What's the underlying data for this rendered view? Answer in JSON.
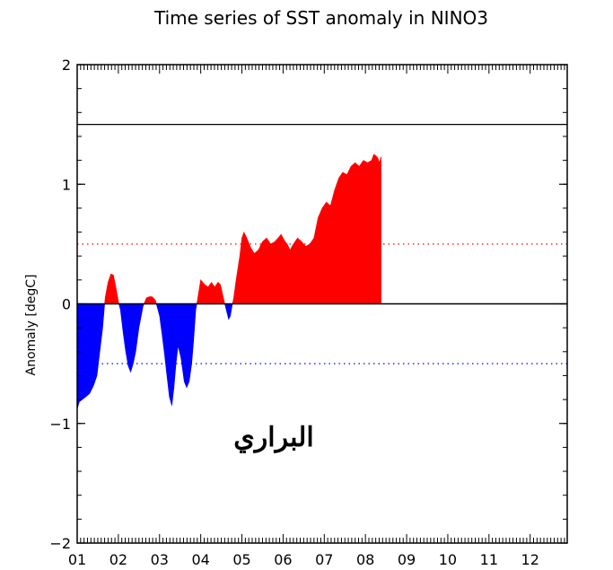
{
  "chart_data": {
    "type": "area",
    "title": "Time series of SST anomaly in NINO3",
    "xlabel": "",
    "ylabel": "Anomaly [degC]",
    "ylim": [
      -2,
      2
    ],
    "yticks": [
      -2,
      -1,
      0,
      1,
      2
    ],
    "ytick_labels": [
      "−2",
      "−1",
      "0",
      "1",
      "2"
    ],
    "xlim": [
      2001.0,
      2012.9
    ],
    "xtick_labels": [
      "01",
      "02",
      "03",
      "04",
      "05",
      "06",
      "07",
      "08",
      "09",
      "10",
      "11",
      "12"
    ],
    "positive_color": "#ff0000",
    "negative_color": "#0000ff",
    "reference_lines": [
      {
        "value": 1.5,
        "style": "solid",
        "color": "#000000"
      },
      {
        "value": 0.5,
        "style": "dotted",
        "color": "#ff0000"
      },
      {
        "value": -0.5,
        "style": "dotted",
        "color": "#0000ff"
      }
    ],
    "annotation": "البراري",
    "x": [
      2001.0,
      2001.05,
      2001.12,
      2001.2,
      2001.3,
      2001.4,
      2001.48,
      2001.55,
      2001.62,
      2001.68,
      2001.75,
      2001.82,
      2001.88,
      2001.95,
      2002.0,
      2002.05,
      2002.12,
      2002.18,
      2002.24,
      2002.3,
      2002.36,
      2002.42,
      2002.5,
      2002.6,
      2002.68,
      2002.75,
      2002.82,
      2002.9,
      2003.0,
      2003.06,
      2003.12,
      2003.18,
      2003.24,
      2003.3,
      2003.35,
      2003.4,
      2003.45,
      2003.52,
      2003.6,
      2003.66,
      2003.72,
      2003.78,
      2003.83,
      2003.88,
      2003.93,
      2004.0,
      2004.05,
      2004.1,
      2004.18,
      2004.26,
      2004.34,
      2004.42,
      2004.48,
      2004.55,
      2004.62,
      2004.68,
      2004.72,
      2004.76,
      2004.8,
      2004.86,
      2004.95,
      2005.0,
      2005.05,
      2005.12,
      2005.2,
      2005.3,
      2005.4,
      2005.5,
      2005.6,
      2005.7,
      2005.8,
      2005.88,
      2005.95,
      2006.0,
      2006.05,
      2006.1,
      2006.17,
      2006.25,
      2006.35,
      2006.45,
      2006.55,
      2006.65,
      2006.75,
      2006.85,
      2006.95,
      2007.05,
      2007.15,
      2007.25,
      2007.35,
      2007.45,
      2007.55,
      2007.65,
      2007.75,
      2007.85,
      2007.95,
      2008.05,
      2008.15,
      2008.2,
      2008.25,
      2008.3,
      2008.34,
      2008.37,
      2008.38
    ],
    "values": [
      -0.88,
      -0.82,
      -0.8,
      -0.78,
      -0.75,
      -0.68,
      -0.6,
      -0.4,
      -0.2,
      0.05,
      0.18,
      0.25,
      0.24,
      0.12,
      0.02,
      -0.05,
      -0.25,
      -0.4,
      -0.52,
      -0.57,
      -0.5,
      -0.4,
      -0.2,
      -0.02,
      0.05,
      0.06,
      0.06,
      0.03,
      -0.1,
      -0.25,
      -0.42,
      -0.6,
      -0.78,
      -0.85,
      -0.7,
      -0.5,
      -0.35,
      -0.45,
      -0.65,
      -0.7,
      -0.65,
      -0.5,
      -0.3,
      -0.05,
      0.05,
      0.2,
      0.18,
      0.16,
      0.14,
      0.18,
      0.14,
      0.18,
      0.16,
      0.05,
      -0.05,
      -0.13,
      -0.1,
      -0.02,
      0.05,
      0.2,
      0.4,
      0.55,
      0.6,
      0.55,
      0.48,
      0.42,
      0.45,
      0.52,
      0.55,
      0.5,
      0.52,
      0.55,
      0.58,
      0.55,
      0.52,
      0.5,
      0.45,
      0.5,
      0.55,
      0.52,
      0.48,
      0.5,
      0.55,
      0.72,
      0.8,
      0.85,
      0.82,
      0.95,
      1.05,
      1.1,
      1.08,
      1.15,
      1.18,
      1.15,
      1.2,
      1.18,
      1.2,
      1.25,
      1.24,
      1.22,
      1.18,
      1.22,
      1.23
    ]
  }
}
